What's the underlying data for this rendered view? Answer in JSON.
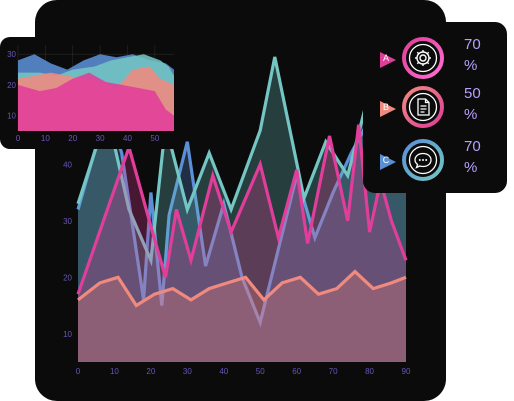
{
  "colors": {
    "panel": "#0b0b0b",
    "axis_label": "#6a55b8",
    "series_blue": "#5b8fd6",
    "series_teal": "#73c6c4",
    "series_pink": "#e13d9a",
    "series_orange": "#f08a7e",
    "stat_text": "#b7a0ff"
  },
  "chart_data": [
    {
      "type": "line",
      "grid": false,
      "xlim": [
        0,
        90
      ],
      "ylim": [
        5,
        62
      ],
      "x_ticks": [
        "0",
        "10",
        "20",
        "30",
        "40",
        "50",
        "60",
        "70",
        "80",
        "90"
      ],
      "y_ticks": [
        "10",
        "20",
        "30",
        "40"
      ],
      "series": [
        {
          "color": "#5b8fd6",
          "points": [
            [
              0,
              32
            ],
            [
              8,
              50
            ],
            [
              12,
              42
            ],
            [
              18,
              16
            ],
            [
              20,
              35
            ],
            [
              23,
              15
            ],
            [
              25,
              31
            ],
            [
              30,
              44
            ],
            [
              35,
              22
            ],
            [
              40,
              33
            ],
            [
              45,
              20
            ],
            [
              50,
              12
            ],
            [
              55,
              25
            ],
            [
              60,
              38
            ],
            [
              65,
              27
            ],
            [
              70,
              35
            ],
            [
              75,
              42
            ],
            [
              80,
              48
            ],
            [
              85,
              52
            ],
            [
              90,
              55
            ]
          ]
        },
        {
          "color": "#73c6c4",
          "points": [
            [
              0,
              33
            ],
            [
              8,
              49
            ],
            [
              14,
              32
            ],
            [
              20,
              23
            ],
            [
              24,
              47
            ],
            [
              30,
              32
            ],
            [
              36,
              42
            ],
            [
              42,
              32
            ],
            [
              50,
              46
            ],
            [
              54,
              59
            ],
            [
              62,
              34
            ],
            [
              68,
              44
            ],
            [
              74,
              38
            ],
            [
              80,
              53
            ],
            [
              86,
              48
            ],
            [
              90,
              35
            ]
          ]
        },
        {
          "color": "#e13d9a",
          "points": [
            [
              0,
              17
            ],
            [
              14,
              43
            ],
            [
              20,
              29
            ],
            [
              24,
              20
            ],
            [
              27,
              32
            ],
            [
              31,
              23
            ],
            [
              37,
              38
            ],
            [
              42,
              28
            ],
            [
              50,
              40
            ],
            [
              55,
              27
            ],
            [
              60,
              39
            ],
            [
              63,
              26
            ],
            [
              69,
              45
            ],
            [
              74,
              30
            ],
            [
              77,
              47
            ],
            [
              80,
              28
            ],
            [
              83,
              37
            ],
            [
              86,
              30
            ],
            [
              90,
              23
            ]
          ]
        },
        {
          "color": "#f08a7e",
          "points": [
            [
              0,
              16
            ],
            [
              6,
              19
            ],
            [
              11,
              20
            ],
            [
              16,
              15
            ],
            [
              21,
              17
            ],
            [
              26,
              18
            ],
            [
              31,
              16
            ],
            [
              36,
              18
            ],
            [
              41,
              19
            ],
            [
              46,
              20
            ],
            [
              51,
              16
            ],
            [
              56,
              19
            ],
            [
              61,
              20
            ],
            [
              66,
              17
            ],
            [
              71,
              18
            ],
            [
              76,
              21
            ],
            [
              81,
              18
            ],
            [
              86,
              19
            ],
            [
              90,
              20
            ]
          ]
        }
      ]
    },
    {
      "type": "area",
      "grid": true,
      "xlim": [
        0,
        57
      ],
      "ylim": [
        5,
        33
      ],
      "x_ticks": [
        "0",
        "10",
        "20",
        "30",
        "40",
        "50"
      ],
      "y_ticks": [
        "10",
        "20",
        "30"
      ],
      "series": [
        {
          "color": "#5b8fd6",
          "points": [
            [
              0,
              28
            ],
            [
              6,
              30
            ],
            [
              12,
              27
            ],
            [
              18,
              25
            ],
            [
              24,
              28
            ],
            [
              30,
              30
            ],
            [
              36,
              29
            ],
            [
              42,
              30
            ],
            [
              48,
              28
            ],
            [
              54,
              27
            ],
            [
              57,
              25
            ]
          ]
        },
        {
          "color": "#73c6c4",
          "points": [
            [
              0,
              24
            ],
            [
              8,
              24
            ],
            [
              14,
              23
            ],
            [
              20,
              25
            ],
            [
              28,
              26
            ],
            [
              34,
              28
            ],
            [
              40,
              29
            ],
            [
              46,
              30
            ],
            [
              52,
              28
            ],
            [
              55,
              26
            ],
            [
              57,
              23
            ]
          ]
        },
        {
          "color": "#f08a7e",
          "points": [
            [
              0,
              22
            ],
            [
              6,
              23
            ],
            [
              12,
              24
            ],
            [
              18,
              23
            ],
            [
              24,
              22
            ],
            [
              30,
              21
            ],
            [
              36,
              19
            ],
            [
              42,
              25
            ],
            [
              48,
              26
            ],
            [
              52,
              22
            ],
            [
              57,
              20
            ]
          ]
        },
        {
          "color": "#e13d9a",
          "points": [
            [
              0,
              20
            ],
            [
              8,
              18
            ],
            [
              14,
              19
            ],
            [
              20,
              22
            ],
            [
              26,
              24
            ],
            [
              32,
              21
            ],
            [
              38,
              20
            ],
            [
              44,
              19
            ],
            [
              50,
              18
            ],
            [
              54,
              12
            ],
            [
              57,
              10
            ]
          ]
        }
      ]
    }
  ],
  "stats": [
    {
      "letter": "A",
      "value": "70\n%",
      "icon": "gear-icon",
      "color_a": "#e13d9a",
      "color_b": "#ff6fd0"
    },
    {
      "letter": "B",
      "value": "50\n%",
      "icon": "document-icon",
      "color_a": "#f08a7e",
      "color_b": "#e13d9a"
    },
    {
      "letter": "C",
      "value": "70\n%",
      "icon": "chat-icon",
      "color_a": "#5b8fd6",
      "color_b": "#73c6c4"
    }
  ]
}
